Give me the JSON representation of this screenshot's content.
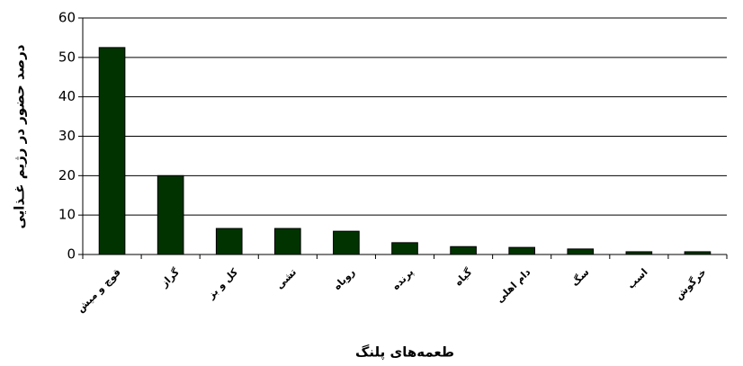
{
  "chart_data": {
    "type": "bar",
    "x_label": "طعمه‌های پلنگ",
    "y_label": "درصد حضور در رژیم غـذایی",
    "categories": [
      "قوچ و میش",
      "گراز",
      "کل و بز",
      "تشی",
      "روباه",
      "پرنده",
      "گیاه",
      "دام اهلی",
      "سگ",
      "اسب",
      "خرگوش"
    ],
    "values": [
      52.5,
      20,
      6.6,
      6.6,
      5.9,
      3,
      2,
      1.8,
      1.4,
      0.7,
      0.7
    ],
    "color": "#003300",
    "ylim": [
      0,
      60
    ],
    "yticks": [
      0,
      10,
      20,
      30,
      40,
      50,
      60
    ],
    "grid": true
  }
}
